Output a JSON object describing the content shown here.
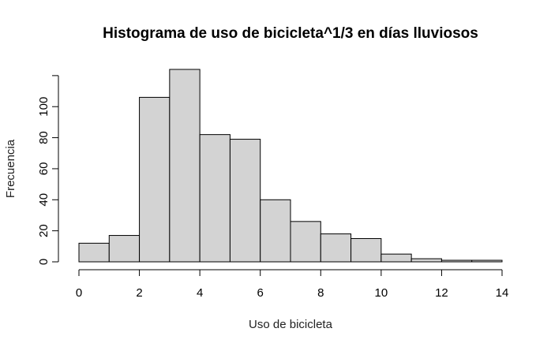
{
  "chart_data": {
    "type": "bar",
    "title": "Histograma de uso de bicicleta^1/3 en días lluviosos",
    "xlabel": "Uso de bicicleta",
    "ylabel": "Frecuencia",
    "bin_edges": [
      0,
      1,
      2,
      3,
      4,
      5,
      6,
      7,
      8,
      9,
      10,
      11,
      12,
      13,
      14
    ],
    "values": [
      12,
      17,
      106,
      124,
      82,
      79,
      40,
      26,
      18,
      15,
      5,
      2,
      1,
      1
    ],
    "xlim": [
      0,
      14
    ],
    "ylim": [
      0,
      124
    ],
    "x_ticks": [
      0,
      2,
      4,
      6,
      8,
      10,
      12,
      14
    ],
    "y_ticks": [
      0,
      20,
      40,
      60,
      80,
      100
    ],
    "bar_color": "#d3d3d3",
    "edge_color": "#000000",
    "grid": false,
    "legend": "none"
  }
}
